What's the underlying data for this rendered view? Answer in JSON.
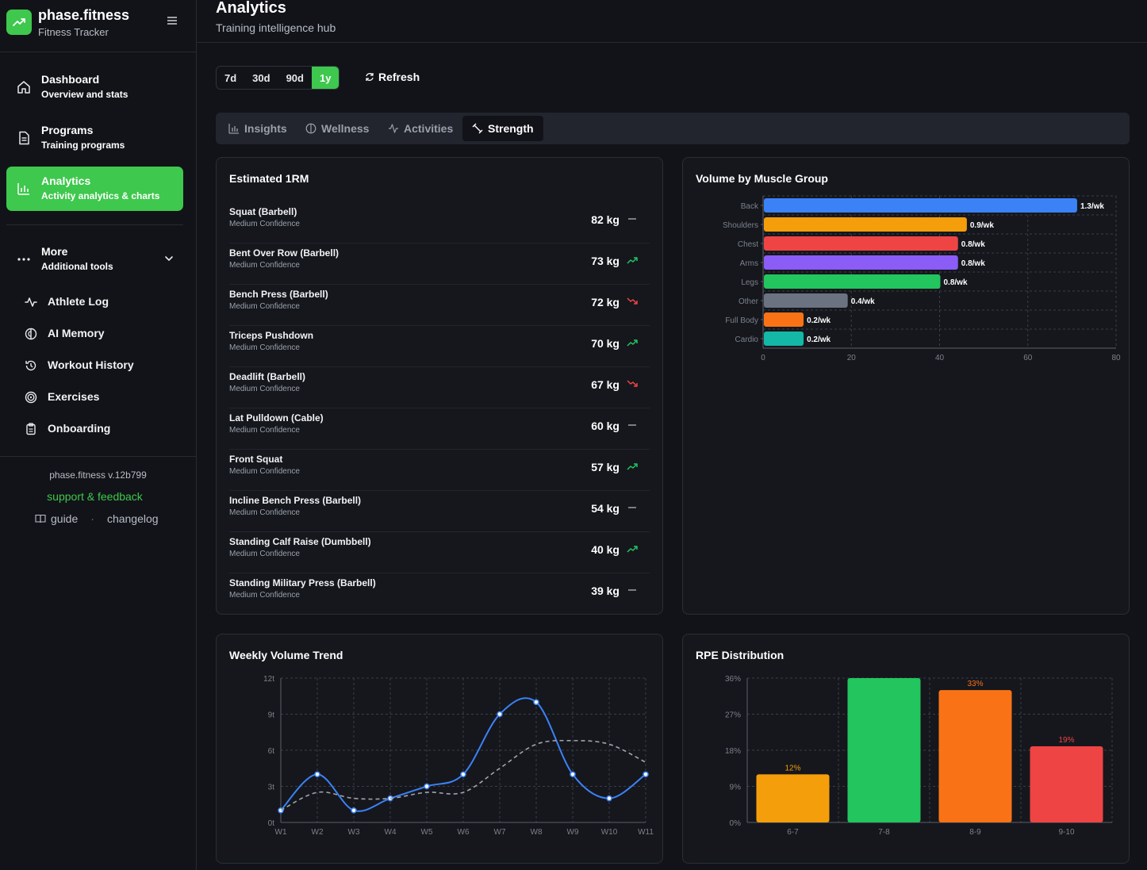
{
  "brand": {
    "title": "phase.fitness",
    "subtitle": "Fitness Tracker"
  },
  "nav": [
    {
      "title": "Dashboard",
      "subtitle": "Overview and stats",
      "icon": "home-icon"
    },
    {
      "title": "Programs",
      "subtitle": "Training programs",
      "icon": "document-icon"
    },
    {
      "title": "Analytics",
      "subtitle": "Activity analytics & charts",
      "icon": "bar-chart-icon",
      "active": true
    }
  ],
  "more": {
    "title": "More",
    "subtitle": "Additional tools"
  },
  "more_items": [
    {
      "label": "Athlete Log",
      "icon": "activity-icon"
    },
    {
      "label": "AI Memory",
      "icon": "brain-icon"
    },
    {
      "label": "Workout History",
      "icon": "history-icon"
    },
    {
      "label": "Exercises",
      "icon": "target-icon"
    },
    {
      "label": "Onboarding",
      "icon": "clipboard-icon"
    }
  ],
  "footer": {
    "version": "phase.fitness v.12b799",
    "support": "support & feedback",
    "guide": "guide",
    "changelog": "changelog",
    "separator": "·"
  },
  "header": {
    "title": "Analytics",
    "subtitle": "Training intelligence hub"
  },
  "ranges": [
    "7d",
    "30d",
    "90d",
    "1y"
  ],
  "active_range": "1y",
  "refresh_label": "Refresh",
  "tabs": [
    {
      "label": "Insights",
      "icon": "bar-chart-icon"
    },
    {
      "label": "Wellness",
      "icon": "brain-icon"
    },
    {
      "label": "Activities",
      "icon": "activity-icon"
    },
    {
      "label": "Strength",
      "icon": "dumbbell-icon",
      "active": true
    }
  ],
  "one_rm": {
    "title": "Estimated 1RM",
    "rows": [
      {
        "name": "Squat (Barbell)",
        "confidence": "Medium Confidence",
        "value": "82 kg",
        "trend": "flat"
      },
      {
        "name": "Bent Over Row (Barbell)",
        "confidence": "Medium Confidence",
        "value": "73 kg",
        "trend": "up"
      },
      {
        "name": "Bench Press (Barbell)",
        "confidence": "Medium Confidence",
        "value": "72 kg",
        "trend": "down"
      },
      {
        "name": "Triceps Pushdown",
        "confidence": "Medium Confidence",
        "value": "70 kg",
        "trend": "up"
      },
      {
        "name": "Deadlift (Barbell)",
        "confidence": "Medium Confidence",
        "value": "67 kg",
        "trend": "down"
      },
      {
        "name": "Lat Pulldown (Cable)",
        "confidence": "Medium Confidence",
        "value": "60 kg",
        "trend": "flat"
      },
      {
        "name": "Front Squat",
        "confidence": "Medium Confidence",
        "value": "57 kg",
        "trend": "up"
      },
      {
        "name": "Incline Bench Press (Barbell)",
        "confidence": "Medium Confidence",
        "value": "54 kg",
        "trend": "flat"
      },
      {
        "name": "Standing Calf Raise (Dumbbell)",
        "confidence": "Medium Confidence",
        "value": "40 kg",
        "trend": "up"
      },
      {
        "name": "Standing Military Press (Barbell)",
        "confidence": "Medium Confidence",
        "value": "39 kg",
        "trend": "flat"
      }
    ]
  },
  "colors": {
    "accent": "#3ec84d",
    "up": "#22c55e",
    "down": "#ef4444",
    "flat": "#9aa0aa",
    "blue": "#3b82f6"
  },
  "chart_data": [
    {
      "type": "bar",
      "orientation": "horizontal",
      "title": "Volume by Muscle Group",
      "categories": [
        "Back",
        "Shoulders",
        "Chest",
        "Arms",
        "Legs",
        "Other",
        "Full Body",
        "Cardio"
      ],
      "values": [
        71,
        46,
        44,
        44,
        40,
        19,
        9,
        9
      ],
      "labels": [
        "1.3/wk",
        "0.9/wk",
        "0.8/wk",
        "0.8/wk",
        "0.8/wk",
        "0.4/wk",
        "0.2/wk",
        "0.2/wk"
      ],
      "colors": [
        "#3b82f6",
        "#f59e0b",
        "#ef4444",
        "#8b5cf6",
        "#22c55e",
        "#6b7280",
        "#f97316",
        "#14b8a6"
      ],
      "xlim": [
        0,
        80
      ],
      "xticks": [
        "0",
        "20",
        "40",
        "60",
        "80"
      ],
      "grid": true
    },
    {
      "type": "line",
      "title": "Weekly Volume Trend",
      "x": [
        "W1",
        "W2",
        "W3",
        "W4",
        "W5",
        "W6",
        "W7",
        "W8",
        "W9",
        "W10",
        "W11"
      ],
      "series": [
        {
          "values": [
            1,
            4,
            1,
            2,
            3,
            4,
            9,
            10,
            4,
            2,
            4
          ],
          "style": "solid",
          "color": "#3b82f6"
        },
        {
          "values": [
            1,
            2.5,
            2,
            2,
            2.5,
            2.5,
            4.5,
            6.5,
            6.8,
            6.5,
            5
          ],
          "style": "dashed",
          "color": "#a0a4ad"
        }
      ],
      "ylim": [
        0,
        12
      ],
      "yticks": [
        "0t",
        "3t",
        "6t",
        "9t",
        "12t"
      ],
      "grid": true
    },
    {
      "type": "bar",
      "title": "RPE Distribution",
      "categories": [
        "6-7",
        "7-8",
        "8-9",
        "9-10"
      ],
      "values": [
        12,
        36,
        33,
        19
      ],
      "labels": [
        "12%",
        "",
        "33%",
        "19%"
      ],
      "colors": [
        "#f59e0b",
        "#22c55e",
        "#f97316",
        "#ef4444"
      ],
      "label_colors": [
        "#f59e0b",
        "#22c55e",
        "#f97316",
        "#ef4444"
      ],
      "ylim": [
        0,
        36
      ],
      "yticks": [
        "0%",
        "9%",
        "18%",
        "27%",
        "36%"
      ],
      "grid": true
    }
  ]
}
